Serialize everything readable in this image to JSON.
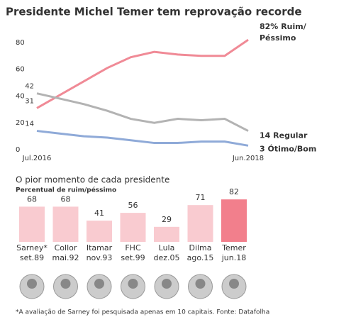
{
  "title": "Presidente Michel Temer tem reprovação recorde",
  "footnote": "*A avaliação de Sarney foi pesquisada apenas em 10 capitais. Fonte: Datafolha",
  "chart_data": [
    {
      "type": "line",
      "categories": [
        "Jul.2016",
        null,
        null,
        null,
        null,
        null,
        null,
        null,
        null,
        "Jun.2018"
      ],
      "ylim": [
        0,
        90
      ],
      "yticks": [
        0,
        20,
        40,
        60,
        80
      ],
      "grid": false,
      "series": [
        {
          "name": "Ruim/Péssimo",
          "color": "#f08a96",
          "values": [
            31,
            41,
            51,
            61,
            69,
            73,
            71,
            70,
            70,
            82
          ],
          "value_labels": [
            null,
            null,
            null,
            null,
            null,
            null,
            null,
            null,
            null,
            "82%"
          ]
        },
        {
          "name": "Regular",
          "color": "#b3b3b3",
          "values": [
            42,
            38,
            34,
            29,
            23,
            20,
            23,
            22,
            23,
            14
          ]
        },
        {
          "name": "Ótimo/Bom",
          "color": "#8faad8",
          "values": [
            14,
            12,
            10,
            9,
            7,
            5,
            5,
            6,
            6,
            3
          ]
        }
      ]
    },
    {
      "type": "bar",
      "title": "O pior momento de cada presidente",
      "subtitle": "Percentual de ruim/péssimo",
      "categories": [
        "Sarney*",
        "Collor",
        "Itamar",
        "FHC",
        "Lula",
        "Dilma",
        "Temer"
      ],
      "dates": [
        "set.89",
        "mai.92",
        "nov.93",
        "set.99",
        "dez.05",
        "ago.15",
        "jun.18"
      ],
      "values": [
        68,
        68,
        41,
        56,
        29,
        71,
        82
      ],
      "colors": [
        "#f9cbd0",
        "#f9cbd0",
        "#f9cbd0",
        "#f9cbd0",
        "#f9cbd0",
        "#f9cbd0",
        "#f27f8c"
      ]
    }
  ]
}
